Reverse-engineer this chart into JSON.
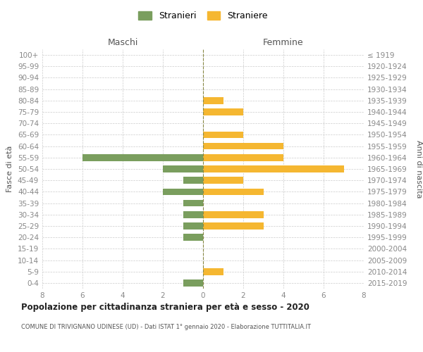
{
  "age_groups": [
    "100+",
    "95-99",
    "90-94",
    "85-89",
    "80-84",
    "75-79",
    "70-74",
    "65-69",
    "60-64",
    "55-59",
    "50-54",
    "45-49",
    "40-44",
    "35-39",
    "30-34",
    "25-29",
    "20-24",
    "15-19",
    "10-14",
    "5-9",
    "0-4"
  ],
  "birth_years": [
    "≤ 1919",
    "1920-1924",
    "1925-1929",
    "1930-1934",
    "1935-1939",
    "1940-1944",
    "1945-1949",
    "1950-1954",
    "1955-1959",
    "1960-1964",
    "1965-1969",
    "1970-1974",
    "1975-1979",
    "1980-1984",
    "1985-1989",
    "1990-1994",
    "1995-1999",
    "2000-2004",
    "2005-2009",
    "2010-2014",
    "2015-2019"
  ],
  "maschi": [
    0,
    0,
    0,
    0,
    0,
    0,
    0,
    0,
    0,
    6,
    2,
    1,
    2,
    1,
    1,
    1,
    1,
    0,
    0,
    0,
    1
  ],
  "femmine": [
    0,
    0,
    0,
    0,
    1,
    2,
    0,
    2,
    4,
    4,
    7,
    2,
    3,
    0,
    3,
    3,
    0,
    0,
    0,
    1,
    0
  ],
  "color_maschi": "#7a9e5e",
  "color_femmine": "#f5b731",
  "xlim": 8,
  "title": "Popolazione per cittadinanza straniera per età e sesso - 2020",
  "subtitle": "COMUNE DI TRIVIGNANO UDINESE (UD) - Dati ISTAT 1° gennaio 2020 - Elaborazione TUTTITALIA.IT",
  "ylabel_left": "Fasce di età",
  "ylabel_right": "Anni di nascita",
  "xlabel_left": "Maschi",
  "xlabel_right": "Femmine",
  "legend_maschi": "Stranieri",
  "legend_femmine": "Straniere",
  "bg_color": "#ffffff",
  "grid_color": "#cccccc",
  "axis_label_color": "#555555",
  "tick_color": "#888888"
}
